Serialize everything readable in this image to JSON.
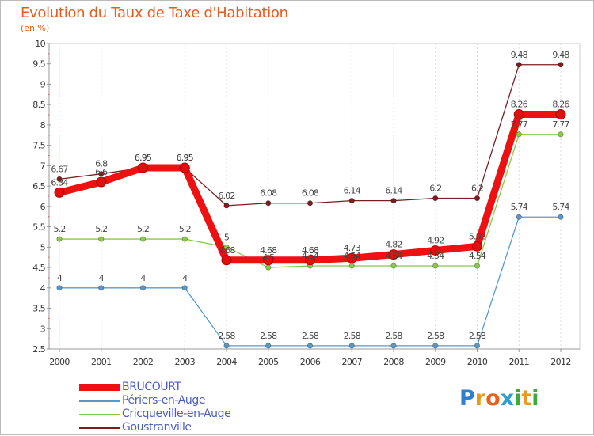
{
  "title": "Evolution du Taux de Taxe d'Habitation",
  "subtitle": "(en %)",
  "colors": {
    "title": "#e85a1e",
    "grid": "#dddddd"
  },
  "chart_data": {
    "type": "line",
    "x": [
      "2000",
      "2001",
      "2002",
      "2003",
      "2004",
      "2005",
      "2006",
      "2007",
      "2008",
      "2009",
      "2010",
      "2011",
      "2012"
    ],
    "ylim": [
      2.5,
      10
    ],
    "yticks": [
      "2.5",
      "3",
      "3.5",
      "4",
      "4.5",
      "5",
      "5.5",
      "6",
      "6.5",
      "7",
      "7.5",
      "8",
      "8.5",
      "9",
      "9.5",
      "10"
    ],
    "grid": "vertical dashed",
    "legend_position": "bottom-left",
    "series": [
      {
        "name": "BRUCOURT",
        "color": "#ee1111",
        "values": [
          6.34,
          6.6,
          6.95,
          6.95,
          4.68,
          4.68,
          4.68,
          4.73,
          4.82,
          4.92,
          5.02,
          8.26,
          8.26
        ],
        "labels": [
          "6.34",
          "6.6",
          "6.95",
          "6.95",
          "4.68",
          "4.68",
          "4.68",
          "4.73",
          "4.82",
          "4.92",
          "5.02",
          "8.26",
          "8.26"
        ]
      },
      {
        "name": "Périers-en-Auge",
        "color": "#5599cc",
        "values": [
          4,
          4,
          4,
          4,
          2.58,
          2.58,
          2.58,
          2.58,
          2.58,
          2.58,
          2.58,
          5.74,
          5.74
        ],
        "labels": [
          "4",
          "4",
          "4",
          "4",
          "2.58",
          "2.58",
          "2.58",
          "2.58",
          "2.58",
          "2.58",
          "2.58",
          "5.74",
          "5.74"
        ]
      },
      {
        "name": "Cricqueville-en-Auge",
        "color": "#88cc44",
        "values": [
          5.2,
          5.2,
          5.2,
          5.2,
          5,
          4.5,
          4.54,
          4.54,
          4.54,
          4.54,
          4.54,
          7.77,
          7.77
        ],
        "labels": [
          "5.2",
          "5.2",
          "5.2",
          "5.2",
          "5",
          "4.5",
          "4.54",
          "4.54",
          "4.54",
          "4.54",
          "4.54",
          "7.77",
          "7.77"
        ]
      },
      {
        "name": "Goustranville",
        "color": "#7a1f1f",
        "values": [
          6.67,
          6.8,
          6.95,
          6.95,
          6.02,
          6.08,
          6.08,
          6.14,
          6.14,
          6.2,
          6.2,
          9.48,
          9.48
        ],
        "labels": [
          "6.67",
          "6.8",
          "6.95",
          "6.95",
          "6.02",
          "6.08",
          "6.08",
          "6.14",
          "6.14",
          "6.2",
          "6.2",
          "9.48",
          "9.48"
        ]
      }
    ]
  },
  "legend": [
    {
      "label": "BRUCOURT"
    },
    {
      "label": "Périers-en-Auge"
    },
    {
      "label": "Cricqueville-en-Auge"
    },
    {
      "label": "Goustranville"
    }
  ],
  "logo": {
    "letters": [
      "P",
      "r",
      "o",
      "x",
      "i",
      "t",
      "i"
    ],
    "colors": [
      "#2f7fd0",
      "#e89a1e",
      "#e8621e",
      "#2f9fd0",
      "#3fa83f",
      "#e89a1e",
      "#3fa83f"
    ]
  }
}
